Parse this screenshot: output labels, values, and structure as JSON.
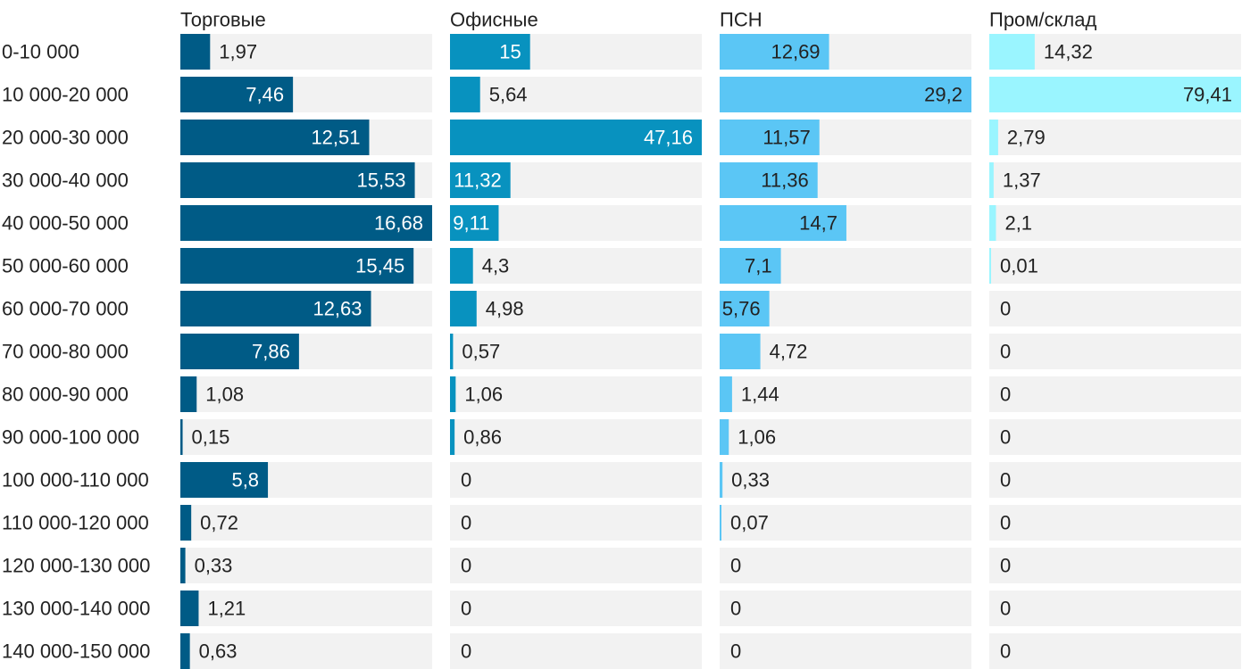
{
  "chart_data": {
    "type": "bar",
    "orientation": "horizontal",
    "layout": "small-multiples",
    "categories": [
      "0-10 000",
      "10 000-20 000",
      "20 000-30 000",
      "30 000-40 000",
      "40 000-50 000",
      "50 000-60 000",
      "60 000-70 000",
      "70 000-80 000",
      "80 000-90 000",
      "90 000-100 000",
      "100 000-110 000",
      "110 000-120 000",
      "120 000-130 000",
      "130 000-140 000",
      "140 000-150 000"
    ],
    "series": [
      {
        "name": "Торговые",
        "color": "#005b86",
        "values": [
          1.97,
          7.46,
          12.51,
          15.53,
          16.68,
          15.45,
          12.63,
          7.86,
          1.08,
          0.15,
          5.8,
          0.72,
          0.33,
          1.21,
          0.63
        ],
        "labels": [
          "1,97",
          "7,46",
          "12,51",
          "15,53",
          "16,68",
          "15,45",
          "12,63",
          "7,86",
          "1,08",
          "0,15",
          "5,8",
          "0,72",
          "0,33",
          "1,21",
          "0,63"
        ]
      },
      {
        "name": "Офисные",
        "color": "#0892bf",
        "values": [
          15,
          5.64,
          47.16,
          11.32,
          9.11,
          4.3,
          4.98,
          0.57,
          1.06,
          0.86,
          0,
          0,
          0,
          0,
          0
        ],
        "labels": [
          "15",
          "5,64",
          "47,16",
          "11,32",
          "9,11",
          "4,3",
          "4,98",
          "0,57",
          "1,06",
          "0,86",
          "0",
          "0",
          "0",
          "0",
          "0"
        ]
      },
      {
        "name": "ПСН",
        "color": "#5bc6f5",
        "values": [
          12.69,
          29.2,
          11.57,
          11.36,
          14.7,
          7.1,
          5.76,
          4.72,
          1.44,
          1.06,
          0.33,
          0.07,
          0,
          0,
          0
        ],
        "labels": [
          "12,69",
          "29,2",
          "11,57",
          "11,36",
          "14,7",
          "7,1",
          "5,76",
          "4,72",
          "1,44",
          "1,06",
          "0,33",
          "0,07",
          "0",
          "0",
          "0"
        ]
      },
      {
        "name": "Пром/склад",
        "color": "#9af5ff",
        "values": [
          14.32,
          79.41,
          2.79,
          1.37,
          2.1,
          0.01,
          0,
          0,
          0,
          0,
          0,
          0,
          0,
          0,
          0
        ],
        "labels": [
          "14,32",
          "79,41",
          "2,79",
          "1,37",
          "2,1",
          "0,01",
          "0",
          "0",
          "0",
          "0",
          "0",
          "0",
          "0",
          "0",
          "0"
        ]
      }
    ],
    "track_color": "#f2f2f2",
    "label_dark_color": "#222222",
    "label_light_color": "#ffffff",
    "title": "",
    "xlabel": "",
    "ylabel": "",
    "grid": false,
    "legend": "none"
  }
}
